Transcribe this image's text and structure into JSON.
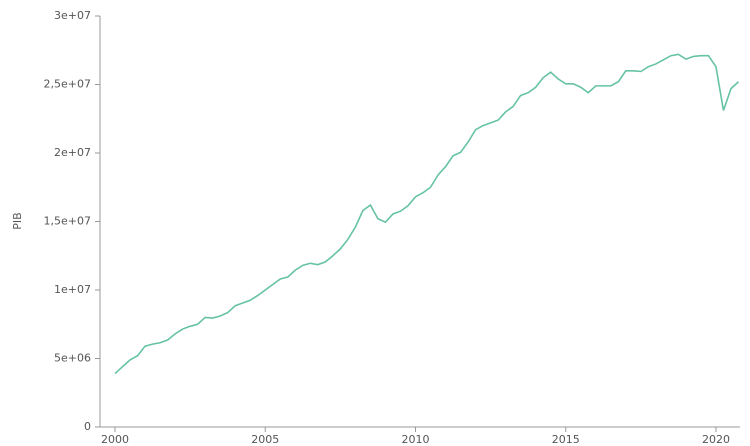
{
  "chart_data": {
    "type": "line",
    "y_label": "PIB",
    "x": [
      2000,
      2000.25,
      2000.5,
      2000.75,
      2001,
      2001.25,
      2001.5,
      2001.75,
      2002,
      2002.25,
      2002.5,
      2002.75,
      2003,
      2003.25,
      2003.5,
      2003.75,
      2004,
      2004.25,
      2004.5,
      2004.75,
      2005,
      2005.25,
      2005.5,
      2005.75,
      2006,
      2006.25,
      2006.5,
      2006.75,
      2007,
      2007.25,
      2007.5,
      2007.75,
      2008,
      2008.25,
      2008.5,
      2008.75,
      2009,
      2009.25,
      2009.5,
      2009.75,
      2010,
      2010.25,
      2010.5,
      2010.75,
      2011,
      2011.25,
      2011.5,
      2011.75,
      2012,
      2012.25,
      2012.5,
      2012.75,
      2013,
      2013.25,
      2013.5,
      2013.75,
      2014,
      2014.25,
      2014.5,
      2014.75,
      2015,
      2015.25,
      2015.5,
      2015.75,
      2016,
      2016.25,
      2016.5,
      2016.75,
      2017,
      2017.25,
      2017.5,
      2017.75,
      2018,
      2018.25,
      2018.5,
      2018.75,
      2019,
      2019.25,
      2019.5,
      2019.75,
      2020,
      2020.25,
      2020.5,
      2020.75
    ],
    "series": [
      {
        "color": "#66c2a5",
        "values": [
          3900000,
          4400000,
          4900000,
          5200000,
          5900000,
          6050000,
          6150000,
          6350000,
          6800000,
          7150000,
          7350000,
          7500000,
          8000000,
          7950000,
          8100000,
          8350000,
          8850000,
          9050000,
          9250000,
          9600000,
          10000000,
          10400000,
          10800000,
          10950000,
          11450000,
          11800000,
          11950000,
          11850000,
          12050000,
          12500000,
          13000000,
          13700000,
          14600000,
          15800000,
          16200000,
          15200000,
          14950000,
          15550000,
          15750000,
          16150000,
          16800000,
          17100000,
          17500000,
          18400000,
          19000000,
          19800000,
          20050000,
          20800000,
          21700000,
          22000000,
          22200000,
          22400000,
          23000000,
          23400000,
          24200000,
          24400000,
          24800000,
          25500000,
          25900000,
          25400000,
          25050000,
          25050000,
          24800000,
          24400000,
          24900000,
          24900000,
          24900000,
          25200000,
          26000000,
          26000000,
          25950000,
          26300000,
          26500000,
          26800000,
          27100000,
          27200000,
          26850000,
          27050000,
          27100000,
          27100000,
          26300000,
          23100000,
          24700000,
          25200000
        ]
      }
    ],
    "xlim": [
      1999.5,
      2020.8
    ],
    "xticks": [
      2000,
      2005,
      2010,
      2015,
      2020
    ],
    "ylim": [
      0,
      30000000
    ],
    "yticks": [
      0,
      {
        "value": 5000000,
        "label": "5e+06"
      },
      {
        "value": 10000000,
        "label": "1e+07"
      },
      {
        "value": 15000000,
        "label": "1,5e+07"
      },
      {
        "value": 20000000,
        "label": "2e+07"
      },
      {
        "value": 25000000,
        "label": "2,5e+07"
      },
      {
        "value": 30000000,
        "label": "3e+07"
      }
    ],
    "grid": false
  }
}
